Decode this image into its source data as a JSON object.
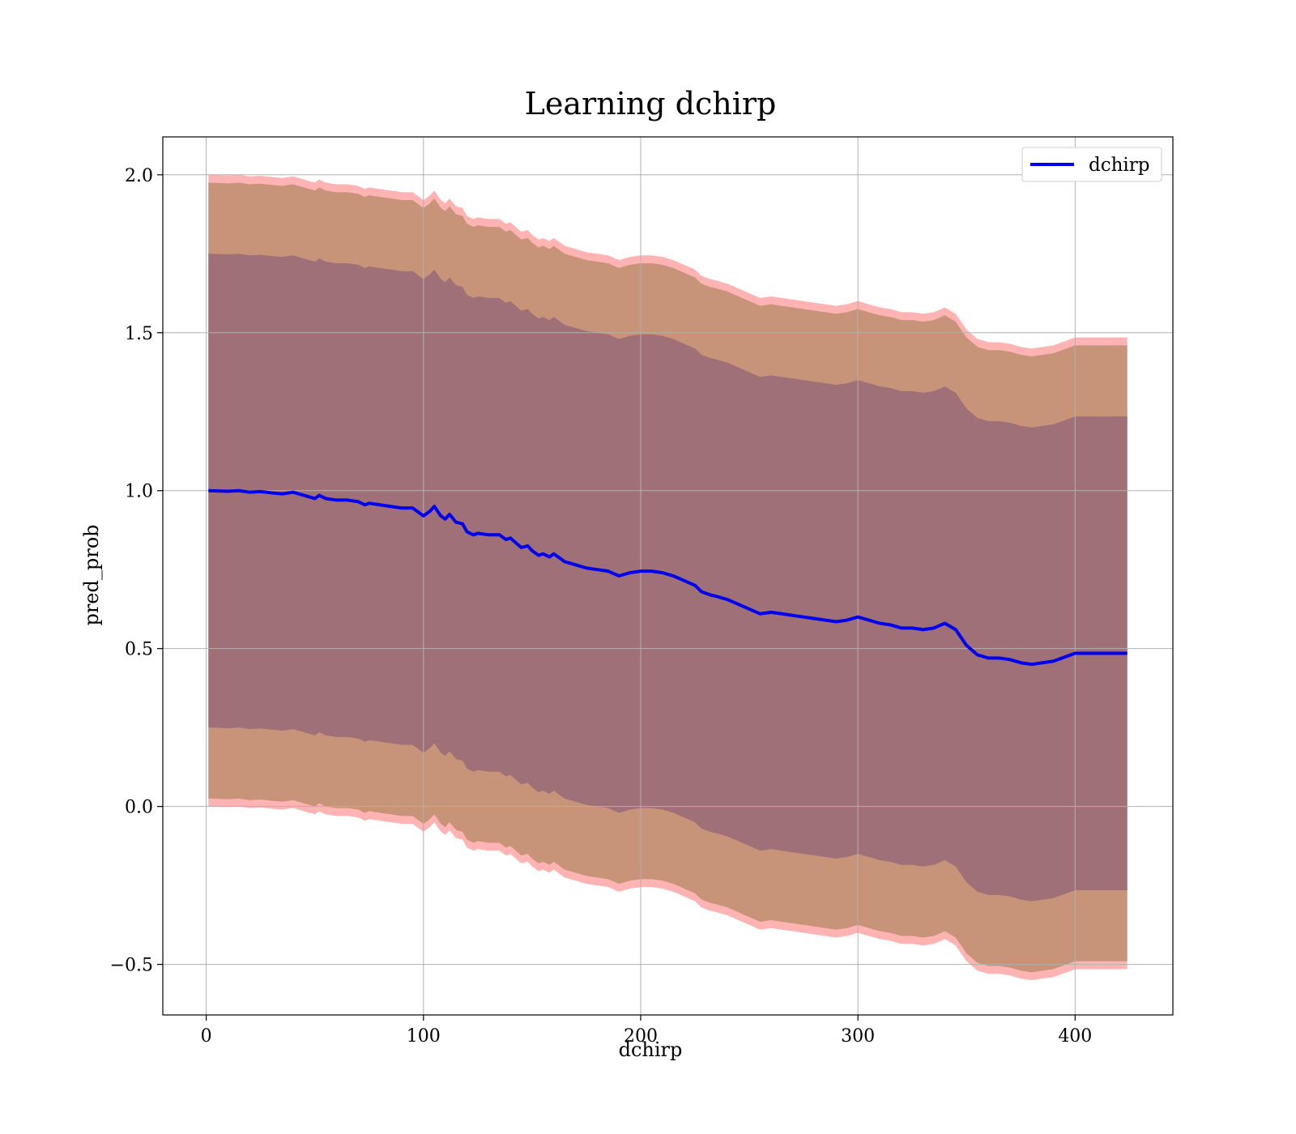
{
  "chart_data": {
    "type": "area",
    "title": "Learning dchirp",
    "xlabel": "dchirp",
    "ylabel": "pred_prob",
    "xlim": [
      -20,
      445
    ],
    "ylim": [
      -0.66,
      2.12
    ],
    "xticks": [
      0,
      100,
      200,
      300,
      400
    ],
    "yticks": [
      -0.5,
      0.0,
      0.5,
      1.0,
      1.5,
      2.0
    ],
    "xtick_labels": [
      "0",
      "100",
      "200",
      "300",
      "400"
    ],
    "ytick_labels": [
      "−0.5",
      "0.0",
      "0.5",
      "1.0",
      "1.5",
      "2.0"
    ],
    "grid": true,
    "legend": {
      "position": "top-right",
      "entries": [
        "dchirp"
      ]
    },
    "bands": [
      {
        "half_width": 1.0,
        "color": "#ffb3b3",
        "opacity": 1.0
      },
      {
        "half_width": 0.975,
        "color": "#c79479",
        "opacity": 1.0
      },
      {
        "half_width": 0.75,
        "color": "#a07079",
        "opacity": 1.0
      }
    ],
    "series": [
      {
        "name": "dchirp",
        "color": "#0000ee",
        "x": [
          1,
          10,
          15,
          20,
          25,
          30,
          35,
          40,
          45,
          50,
          52,
          55,
          60,
          65,
          70,
          73,
          75,
          80,
          85,
          90,
          95,
          100,
          103,
          105,
          108,
          110,
          112,
          115,
          118,
          120,
          123,
          125,
          130,
          135,
          138,
          140,
          145,
          148,
          150,
          153,
          155,
          158,
          160,
          163,
          165,
          170,
          175,
          180,
          185,
          190,
          195,
          200,
          205,
          210,
          215,
          220,
          225,
          228,
          232,
          235,
          240,
          245,
          250,
          255,
          260,
          265,
          270,
          275,
          280,
          285,
          290,
          295,
          300,
          305,
          310,
          315,
          320,
          325,
          330,
          335,
          340,
          345,
          350,
          355,
          360,
          365,
          370,
          375,
          380,
          390,
          400,
          410,
          424
        ],
        "y": [
          1.0,
          0.998,
          1.0,
          0.995,
          0.997,
          0.993,
          0.99,
          0.995,
          0.985,
          0.975,
          0.985,
          0.975,
          0.97,
          0.97,
          0.965,
          0.955,
          0.96,
          0.955,
          0.95,
          0.945,
          0.945,
          0.92,
          0.935,
          0.95,
          0.92,
          0.91,
          0.925,
          0.9,
          0.895,
          0.87,
          0.86,
          0.865,
          0.86,
          0.86,
          0.845,
          0.85,
          0.82,
          0.825,
          0.81,
          0.795,
          0.8,
          0.79,
          0.8,
          0.785,
          0.775,
          0.765,
          0.755,
          0.75,
          0.745,
          0.73,
          0.74,
          0.745,
          0.745,
          0.74,
          0.73,
          0.715,
          0.7,
          0.68,
          0.67,
          0.665,
          0.655,
          0.64,
          0.625,
          0.61,
          0.615,
          0.61,
          0.605,
          0.6,
          0.595,
          0.59,
          0.585,
          0.59,
          0.6,
          0.59,
          0.58,
          0.575,
          0.565,
          0.565,
          0.56,
          0.565,
          0.58,
          0.56,
          0.51,
          0.48,
          0.47,
          0.47,
          0.465,
          0.455,
          0.45,
          0.46,
          0.485,
          0.485,
          0.485
        ]
      }
    ]
  }
}
